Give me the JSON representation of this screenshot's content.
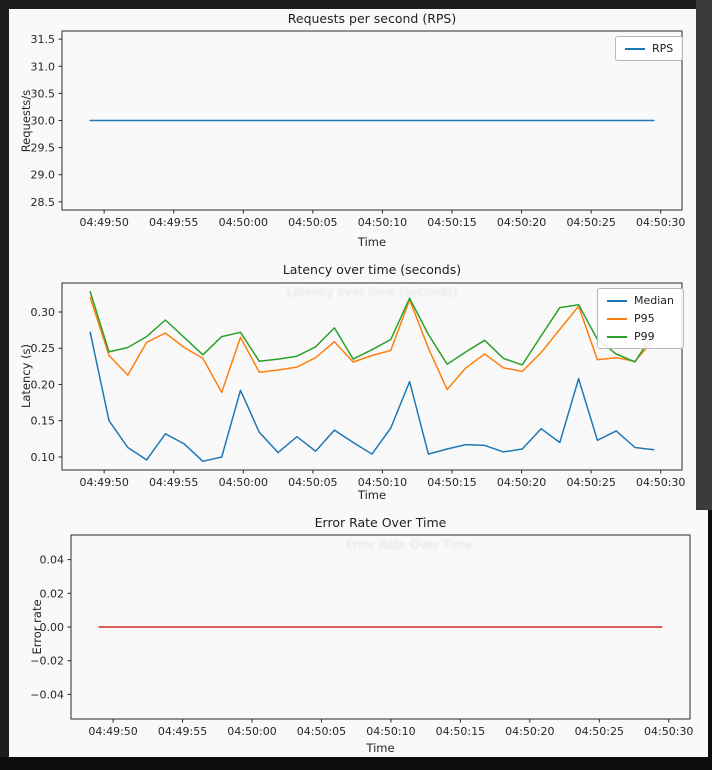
{
  "colors": {
    "panel_bg": "#f9f9f9",
    "text": "#262626",
    "spine": "#2b2b2b",
    "blue": "#1f77b4",
    "orange": "#ff7f0e",
    "green": "#2ca02c",
    "red": "#d62728"
  },
  "chart_data": [
    {
      "type": "line",
      "title": "Requests per second (RPS)",
      "xlabel": "Time",
      "ylabel": "Requests/s",
      "xlim": [
        46.97,
        91.53
      ],
      "ylim": [
        28.35,
        31.65
      ],
      "grid": false,
      "xticks": {
        "values": [
          50,
          55,
          60,
          65,
          70,
          75,
          80,
          85,
          90
        ],
        "labels": [
          "04:49:50",
          "04:49:55",
          "04:50:00",
          "04:50:05",
          "04:50:10",
          "04:50:15",
          "04:50:20",
          "04:50:25",
          "04:50:30"
        ]
      },
      "yticks": {
        "values": [
          28.5,
          29.0,
          29.5,
          30.0,
          30.5,
          31.0,
          31.5
        ],
        "labels": [
          "28.5",
          "29.0",
          "29.5",
          "30.0",
          "30.5",
          "31.0",
          "31.5"
        ]
      },
      "legend": {
        "position": "upper right",
        "entries": [
          {
            "label": "RPS",
            "color": "#1f77b4"
          }
        ]
      },
      "x_seconds_after_044900": [
        49.0,
        50.35,
        51.7,
        53.05,
        54.4,
        55.75,
        57.1,
        58.45,
        59.8,
        61.15,
        62.5,
        63.85,
        65.2,
        66.55,
        67.9,
        69.25,
        70.6,
        71.95,
        73.3,
        74.65,
        76.0,
        77.35,
        78.7,
        80.05,
        81.4,
        82.75,
        84.1,
        85.45,
        86.8,
        88.15,
        89.5
      ],
      "series": [
        {
          "name": "RPS",
          "color": "#1f77b4",
          "values": [
            30.0,
            30.0,
            30.0,
            30.0,
            30.0,
            30.0,
            30.0,
            30.0,
            30.0,
            30.0,
            30.0,
            30.0,
            30.0,
            30.0,
            30.0,
            30.0,
            30.0,
            30.0,
            30.0,
            30.0,
            30.0,
            30.0,
            30.0,
            30.0,
            30.0,
            30.0,
            30.0,
            30.0,
            30.0,
            30.0,
            30.0
          ]
        }
      ]
    },
    {
      "type": "line",
      "title": "Latency over time (seconds)",
      "xlabel": "Time",
      "ylabel": "Latency (s)",
      "xlim": [
        46.97,
        91.53
      ],
      "ylim": [
        0.082,
        0.34
      ],
      "grid": false,
      "xticks": {
        "values": [
          50,
          55,
          60,
          65,
          70,
          75,
          80,
          85,
          90
        ],
        "labels": [
          "04:49:50",
          "04:49:55",
          "04:50:00",
          "04:50:05",
          "04:50:10",
          "04:50:15",
          "04:50:20",
          "04:50:25",
          "04:50:30"
        ]
      },
      "yticks": {
        "values": [
          0.1,
          0.15,
          0.2,
          0.25,
          0.3
        ],
        "labels": [
          "0.10",
          "0.15",
          "0.20",
          "0.25",
          "0.30"
        ]
      },
      "legend": {
        "position": "upper right",
        "entries": [
          {
            "label": "Median",
            "color": "#1f77b4"
          },
          {
            "label": "P95",
            "color": "#ff7f0e"
          },
          {
            "label": "P99",
            "color": "#2ca02c"
          }
        ]
      },
      "x_seconds_after_044900": [
        49.0,
        50.35,
        51.7,
        53.05,
        54.4,
        55.75,
        57.1,
        58.45,
        59.8,
        61.15,
        62.5,
        63.85,
        65.2,
        66.55,
        67.9,
        69.25,
        70.6,
        71.95,
        73.3,
        74.65,
        76.0,
        77.35,
        78.7,
        80.05,
        81.4,
        82.75,
        84.1,
        85.45,
        86.8,
        88.15,
        89.5
      ],
      "series": [
        {
          "name": "Median",
          "color": "#1f77b4",
          "values": [
            0.272,
            0.15,
            0.113,
            0.096,
            0.132,
            0.118,
            0.094,
            0.1,
            0.192,
            0.134,
            0.106,
            0.128,
            0.108,
            0.137,
            0.12,
            0.104,
            0.14,
            0.204,
            0.104,
            0.111,
            0.117,
            0.116,
            0.107,
            0.111,
            0.139,
            0.12,
            0.208,
            0.123,
            0.136,
            0.113,
            0.11
          ]
        },
        {
          "name": "P95",
          "color": "#ff7f0e",
          "values": [
            0.32,
            0.24,
            0.213,
            0.258,
            0.271,
            0.251,
            0.236,
            0.189,
            0.265,
            0.217,
            0.22,
            0.224,
            0.237,
            0.259,
            0.231,
            0.24,
            0.247,
            0.317,
            0.25,
            0.193,
            0.223,
            0.242,
            0.223,
            0.218,
            0.244,
            0.276,
            0.308,
            0.234,
            0.237,
            0.232,
            0.262
          ]
        },
        {
          "name": "P99",
          "color": "#2ca02c",
          "values": [
            0.328,
            0.245,
            0.251,
            0.266,
            0.289,
            0.265,
            0.241,
            0.266,
            0.272,
            0.232,
            0.235,
            0.239,
            0.252,
            0.278,
            0.235,
            0.248,
            0.262,
            0.319,
            0.269,
            0.228,
            0.245,
            0.261,
            0.236,
            0.227,
            0.267,
            0.306,
            0.31,
            0.262,
            0.242,
            0.231,
            0.272
          ]
        }
      ]
    },
    {
      "type": "line",
      "title": "Error Rate Over Time",
      "xlabel": "Time",
      "ylabel": "Error rate",
      "xlim": [
        46.97,
        91.53
      ],
      "ylim": [
        -0.0546,
        0.0546
      ],
      "grid": false,
      "xticks": {
        "values": [
          50,
          55,
          60,
          65,
          70,
          75,
          80,
          85,
          90
        ],
        "labels": [
          "04:49:50",
          "04:49:55",
          "04:50:00",
          "04:50:05",
          "04:50:10",
          "04:50:15",
          "04:50:20",
          "04:50:25",
          "04:50:30"
        ]
      },
      "yticks": {
        "values": [
          -0.04,
          -0.02,
          0.0,
          0.02,
          0.04
        ],
        "labels": [
          "−0.04",
          "−0.02",
          "0.00",
          "0.02",
          "0.04"
        ]
      },
      "legend": null,
      "x_seconds_after_044900": [
        49.0,
        50.35,
        51.7,
        53.05,
        54.4,
        55.75,
        57.1,
        58.45,
        59.8,
        61.15,
        62.5,
        63.85,
        65.2,
        66.55,
        67.9,
        69.25,
        70.6,
        71.95,
        73.3,
        74.65,
        76.0,
        77.35,
        78.7,
        80.05,
        81.4,
        82.75,
        84.1,
        85.45,
        86.8,
        88.15,
        89.5
      ],
      "series": [
        {
          "name": "Error rate",
          "color": "#d62728",
          "values": [
            0.0,
            0.0,
            0.0,
            0.0,
            0.0,
            0.0,
            0.0,
            0.0,
            0.0,
            0.0,
            0.0,
            0.0,
            0.0,
            0.0,
            0.0,
            0.0,
            0.0,
            0.0,
            0.0,
            0.0,
            0.0,
            0.0,
            0.0,
            0.0,
            0.0,
            0.0,
            0.0,
            0.0,
            0.0,
            0.0,
            0.0
          ]
        }
      ]
    }
  ]
}
